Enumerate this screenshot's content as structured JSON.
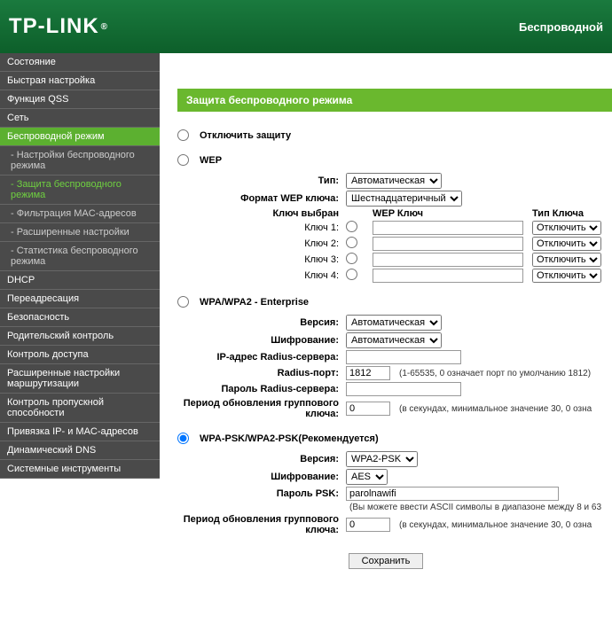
{
  "header": {
    "logo": "TP-LINK",
    "title": "Беспроводной"
  },
  "sidebar": {
    "items": [
      {
        "label": "Состояние",
        "type": "item",
        "active": false
      },
      {
        "label": "Быстрая настройка",
        "type": "item",
        "active": false
      },
      {
        "label": "Функция QSS",
        "type": "item",
        "active": false
      },
      {
        "label": "Сеть",
        "type": "item",
        "active": false
      },
      {
        "label": "Беспроводной режим",
        "type": "item",
        "active": true
      },
      {
        "label": "- Настройки беспроводного режима",
        "type": "sub",
        "active": false
      },
      {
        "label": "- Защита беспроводного режима",
        "type": "sub",
        "active": true
      },
      {
        "label": "- Фильтрация MAC-адресов",
        "type": "sub",
        "active": false
      },
      {
        "label": "- Расширенные настройки",
        "type": "sub",
        "active": false
      },
      {
        "label": "- Статистика беспроводного режима",
        "type": "sub",
        "active": false
      },
      {
        "label": "DHCP",
        "type": "item",
        "active": false
      },
      {
        "label": "Переадресация",
        "type": "item",
        "active": false
      },
      {
        "label": "Безопасность",
        "type": "item",
        "active": false
      },
      {
        "label": "Родительский контроль",
        "type": "item",
        "active": false
      },
      {
        "label": "Контроль доступа",
        "type": "item",
        "active": false
      },
      {
        "label": "Расширенные настройки маршрутизации",
        "type": "item",
        "active": false
      },
      {
        "label": "Контроль пропускной способности",
        "type": "item",
        "active": false
      },
      {
        "label": "Привязка IP- и MAC-адресов",
        "type": "item",
        "active": false
      },
      {
        "label": "Динамический DNS",
        "type": "item",
        "active": false
      },
      {
        "label": "Системные инструменты",
        "type": "item",
        "active": false
      }
    ]
  },
  "page": {
    "title": "Защита беспроводного режима",
    "disable_label": "Отключить защиту",
    "wep": {
      "title": "WEP",
      "type_label": "Тип:",
      "type_value": "Автоматическая",
      "format_label": "Формат WEP ключа:",
      "format_value": "Шестнадцатеричный",
      "selected_label": "Ключ выбран",
      "key_col": "WEP Ключ",
      "type_col": "Тип Ключа",
      "rows": [
        {
          "label": "Ключ 1:",
          "key": "",
          "type": "Отключить"
        },
        {
          "label": "Ключ 2:",
          "key": "",
          "type": "Отключить"
        },
        {
          "label": "Ключ 3:",
          "key": "",
          "type": "Отключить"
        },
        {
          "label": "Ключ 4:",
          "key": "",
          "type": "Отключить"
        }
      ]
    },
    "enterprise": {
      "title": "WPA/WPA2 - Enterprise",
      "version_label": "Версия:",
      "version_value": "Автоматическая",
      "cipher_label": "Шифрование:",
      "cipher_value": "Автоматическая",
      "radius_ip_label": "IP-адрес Radius-сервера:",
      "radius_ip_value": "",
      "radius_port_label": "Radius-порт:",
      "radius_port_value": "1812",
      "radius_port_hint": "(1-65535, 0 означает порт по умолчанию 1812)",
      "radius_pw_label": "Пароль Radius-сервера:",
      "radius_pw_value": "",
      "rekey_label": "Период обновления группового ключа:",
      "rekey_value": "0",
      "rekey_hint": "(в секундах, минимальное значение 30, 0 озна"
    },
    "psk": {
      "title": "WPA-PSK/WPA2-PSK(Рекомендуется)",
      "version_label": "Версия:",
      "version_value": "WPA2-PSK",
      "cipher_label": "Шифрование:",
      "cipher_value": "AES",
      "pw_label": "Пароль PSK:",
      "pw_value": "parolnawifi",
      "pw_hint": "(Вы можете ввести ASCII символы в диапазоне между 8 и 63 ",
      "rekey_label": "Период обновления группового ключа:",
      "rekey_value": "0",
      "rekey_hint": "(в секундах, минимальное значение 30, 0 озна"
    },
    "save": "Сохранить"
  }
}
